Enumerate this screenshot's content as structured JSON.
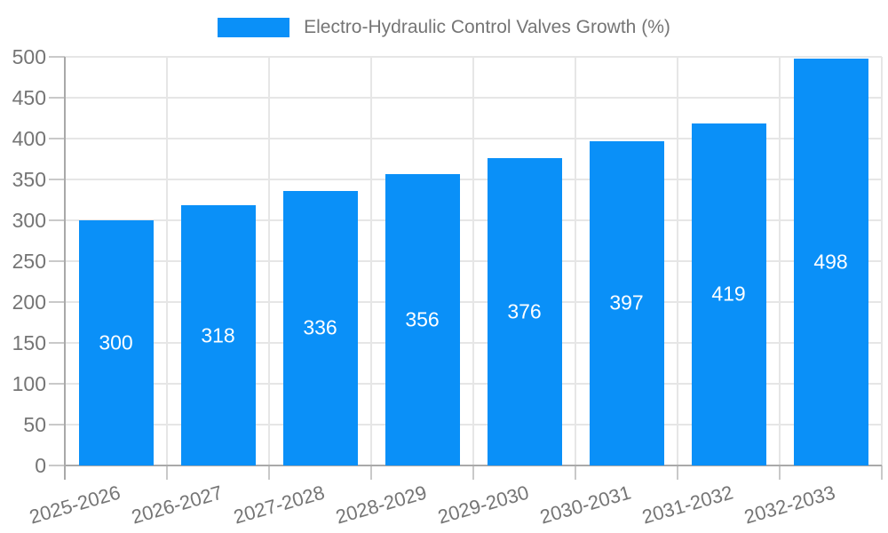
{
  "chart_data": {
    "type": "bar",
    "title": "Electro-Hydraulic Control Valves Growth (%)",
    "legend_position": "top",
    "categories": [
      "2025-2026",
      "2026-2027",
      "2027-2028",
      "2028-2029",
      "2029-2030",
      "2030-2031",
      "2031-2032",
      "2032-2033"
    ],
    "values": [
      300,
      318,
      336,
      356,
      376,
      397,
      419,
      498
    ],
    "value_labels": [
      "300",
      "318",
      "336",
      "356",
      "376",
      "397",
      "419",
      "498"
    ],
    "xlabel": "",
    "ylabel": "",
    "ylim": [
      0,
      500
    ],
    "yticks": [
      0,
      50,
      100,
      150,
      200,
      250,
      300,
      350,
      400,
      450,
      500
    ],
    "grid": true,
    "colors": {
      "bar": "#0a90f8",
      "value_label": "#ffffff",
      "axis_text": "#757575",
      "gridline": "#e6e6e6",
      "tick": "#c9c9c9",
      "axis_line": "#a9a9a9",
      "background": "#ffffff"
    }
  }
}
